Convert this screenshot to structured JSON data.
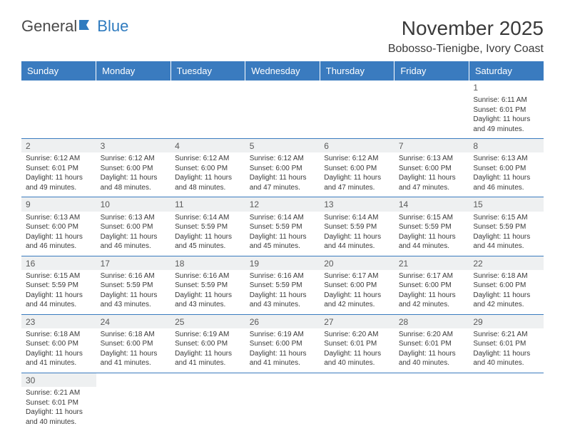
{
  "logo": {
    "general": "General",
    "blue": "Blue",
    "icon_color": "#2f7bbf"
  },
  "title": "November 2025",
  "location": "Bobosso-Tienigbe, Ivory Coast",
  "day_headers": [
    "Sunday",
    "Monday",
    "Tuesday",
    "Wednesday",
    "Thursday",
    "Friday",
    "Saturday"
  ],
  "header_bg": "#3a7bbf",
  "header_fg": "#ffffff",
  "border_color": "#3a7bbf",
  "daynum_bg": "#eef0f1",
  "weeks": [
    [
      null,
      null,
      null,
      null,
      null,
      null,
      {
        "n": "1",
        "sr": "6:11 AM",
        "ss": "6:01 PM",
        "dl": "11 hours and 49 minutes."
      }
    ],
    [
      {
        "n": "2",
        "sr": "6:12 AM",
        "ss": "6:01 PM",
        "dl": "11 hours and 49 minutes."
      },
      {
        "n": "3",
        "sr": "6:12 AM",
        "ss": "6:00 PM",
        "dl": "11 hours and 48 minutes."
      },
      {
        "n": "4",
        "sr": "6:12 AM",
        "ss": "6:00 PM",
        "dl": "11 hours and 48 minutes."
      },
      {
        "n": "5",
        "sr": "6:12 AM",
        "ss": "6:00 PM",
        "dl": "11 hours and 47 minutes."
      },
      {
        "n": "6",
        "sr": "6:12 AM",
        "ss": "6:00 PM",
        "dl": "11 hours and 47 minutes."
      },
      {
        "n": "7",
        "sr": "6:13 AM",
        "ss": "6:00 PM",
        "dl": "11 hours and 47 minutes."
      },
      {
        "n": "8",
        "sr": "6:13 AM",
        "ss": "6:00 PM",
        "dl": "11 hours and 46 minutes."
      }
    ],
    [
      {
        "n": "9",
        "sr": "6:13 AM",
        "ss": "6:00 PM",
        "dl": "11 hours and 46 minutes."
      },
      {
        "n": "10",
        "sr": "6:13 AM",
        "ss": "6:00 PM",
        "dl": "11 hours and 46 minutes."
      },
      {
        "n": "11",
        "sr": "6:14 AM",
        "ss": "5:59 PM",
        "dl": "11 hours and 45 minutes."
      },
      {
        "n": "12",
        "sr": "6:14 AM",
        "ss": "5:59 PM",
        "dl": "11 hours and 45 minutes."
      },
      {
        "n": "13",
        "sr": "6:14 AM",
        "ss": "5:59 PM",
        "dl": "11 hours and 44 minutes."
      },
      {
        "n": "14",
        "sr": "6:15 AM",
        "ss": "5:59 PM",
        "dl": "11 hours and 44 minutes."
      },
      {
        "n": "15",
        "sr": "6:15 AM",
        "ss": "5:59 PM",
        "dl": "11 hours and 44 minutes."
      }
    ],
    [
      {
        "n": "16",
        "sr": "6:15 AM",
        "ss": "5:59 PM",
        "dl": "11 hours and 44 minutes."
      },
      {
        "n": "17",
        "sr": "6:16 AM",
        "ss": "5:59 PM",
        "dl": "11 hours and 43 minutes."
      },
      {
        "n": "18",
        "sr": "6:16 AM",
        "ss": "5:59 PM",
        "dl": "11 hours and 43 minutes."
      },
      {
        "n": "19",
        "sr": "6:16 AM",
        "ss": "5:59 PM",
        "dl": "11 hours and 43 minutes."
      },
      {
        "n": "20",
        "sr": "6:17 AM",
        "ss": "6:00 PM",
        "dl": "11 hours and 42 minutes."
      },
      {
        "n": "21",
        "sr": "6:17 AM",
        "ss": "6:00 PM",
        "dl": "11 hours and 42 minutes."
      },
      {
        "n": "22",
        "sr": "6:18 AM",
        "ss": "6:00 PM",
        "dl": "11 hours and 42 minutes."
      }
    ],
    [
      {
        "n": "23",
        "sr": "6:18 AM",
        "ss": "6:00 PM",
        "dl": "11 hours and 41 minutes."
      },
      {
        "n": "24",
        "sr": "6:18 AM",
        "ss": "6:00 PM",
        "dl": "11 hours and 41 minutes."
      },
      {
        "n": "25",
        "sr": "6:19 AM",
        "ss": "6:00 PM",
        "dl": "11 hours and 41 minutes."
      },
      {
        "n": "26",
        "sr": "6:19 AM",
        "ss": "6:00 PM",
        "dl": "11 hours and 41 minutes."
      },
      {
        "n": "27",
        "sr": "6:20 AM",
        "ss": "6:01 PM",
        "dl": "11 hours and 40 minutes."
      },
      {
        "n": "28",
        "sr": "6:20 AM",
        "ss": "6:01 PM",
        "dl": "11 hours and 40 minutes."
      },
      {
        "n": "29",
        "sr": "6:21 AM",
        "ss": "6:01 PM",
        "dl": "11 hours and 40 minutes."
      }
    ],
    [
      {
        "n": "30",
        "sr": "6:21 AM",
        "ss": "6:01 PM",
        "dl": "11 hours and 40 minutes."
      },
      null,
      null,
      null,
      null,
      null,
      null
    ]
  ],
  "labels": {
    "sunrise": "Sunrise:",
    "sunset": "Sunset:",
    "daylight": "Daylight:"
  }
}
